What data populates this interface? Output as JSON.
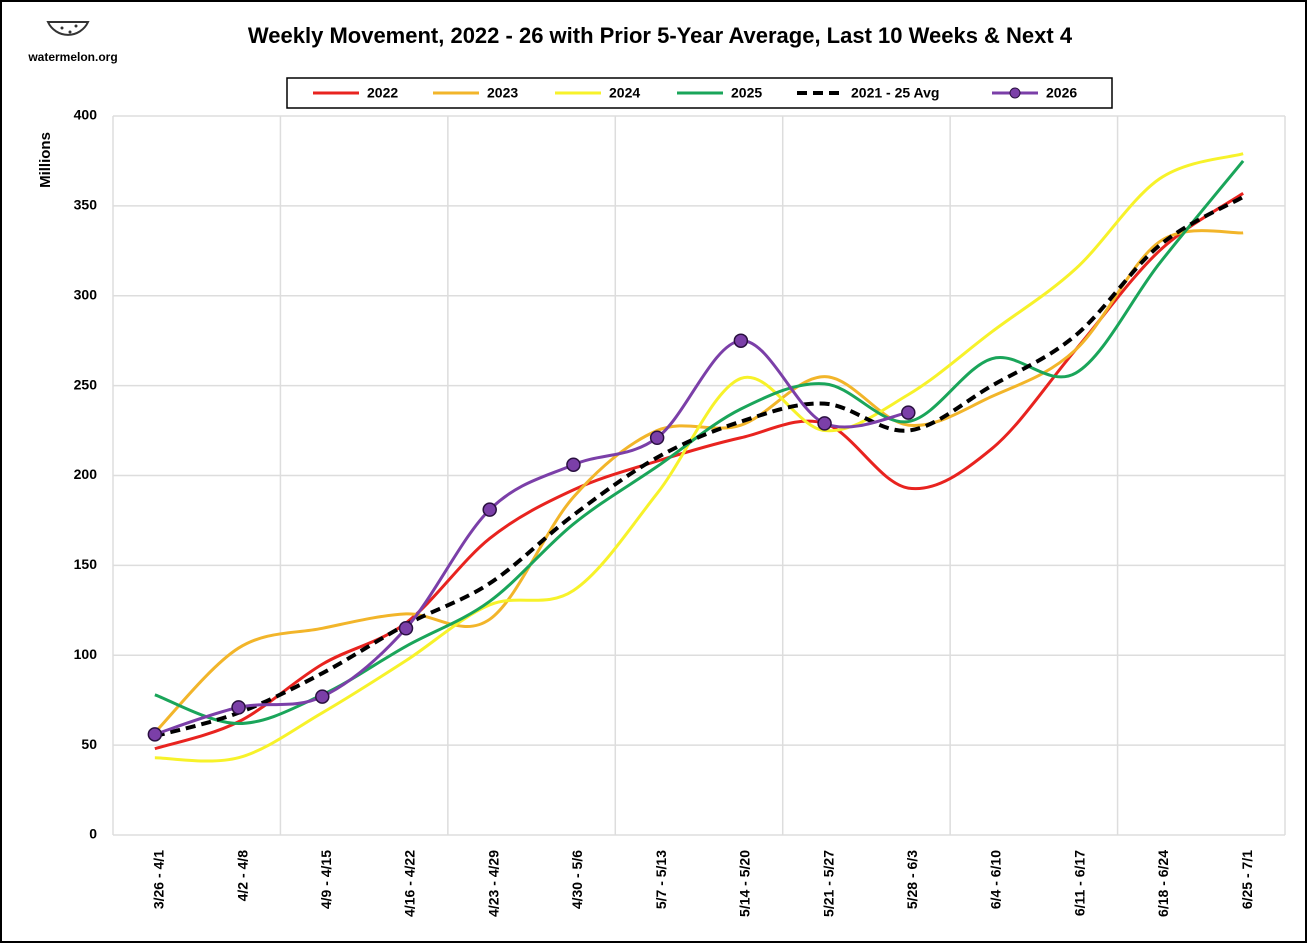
{
  "chart_data": {
    "type": "line",
    "title": "Weekly Movement, 2022 - 26 with Prior 5-Year Average, Last 10 Weeks & Next 4",
    "logo": "watermelon.org",
    "y_label": "Millions",
    "categories": [
      "3/26 - 4/1",
      "4/2 - 4/8",
      "4/9 - 4/15",
      "4/16 - 4/22",
      "4/23 - 4/29",
      "4/30 - 5/6",
      "5/7 - 5/13",
      "5/14 - 5/20",
      "5/21 - 5/27",
      "5/28 - 6/3",
      "6/4 - 6/10",
      "6/11 - 6/17",
      "6/18 - 6/24",
      "6/25 - 7/1"
    ],
    "series": [
      {
        "name": "2022",
        "color": "#e8231f",
        "values": [
          48,
          63,
          95,
          118,
          165,
          192,
          208,
          221,
          229,
          193,
          215,
          270,
          325,
          357
        ]
      },
      {
        "name": "2023",
        "color": "#f2b52a",
        "values": [
          57,
          104,
          115,
          123,
          120,
          188,
          225,
          228,
          255,
          228,
          244,
          270,
          330,
          335
        ]
      },
      {
        "name": "2024",
        "color": "#f7f22a",
        "values": [
          43,
          43,
          68,
          97,
          128,
          136,
          190,
          254,
          225,
          245,
          280,
          315,
          365,
          379
        ]
      },
      {
        "name": "2025",
        "color": "#1aa55a",
        "values": [
          78,
          62,
          78,
          105,
          130,
          173,
          205,
          237,
          251,
          230,
          265,
          257,
          318,
          375
        ]
      },
      {
        "name": "2021 - 25 Avg",
        "color": "#000000",
        "dashed": true,
        "values": [
          55,
          68,
          90,
          117,
          140,
          178,
          210,
          230,
          240,
          225,
          250,
          278,
          328,
          355
        ]
      },
      {
        "name": "2026",
        "color": "#7b3fa8",
        "marker": true,
        "values": [
          56,
          71,
          77,
          115,
          181,
          206,
          221,
          275,
          229,
          235,
          null,
          null,
          null,
          null
        ]
      }
    ],
    "ylim": [
      0,
      400
    ],
    "yticks": [
      0,
      50,
      100,
      150,
      200,
      250,
      300,
      350,
      400
    ],
    "grid": true
  }
}
